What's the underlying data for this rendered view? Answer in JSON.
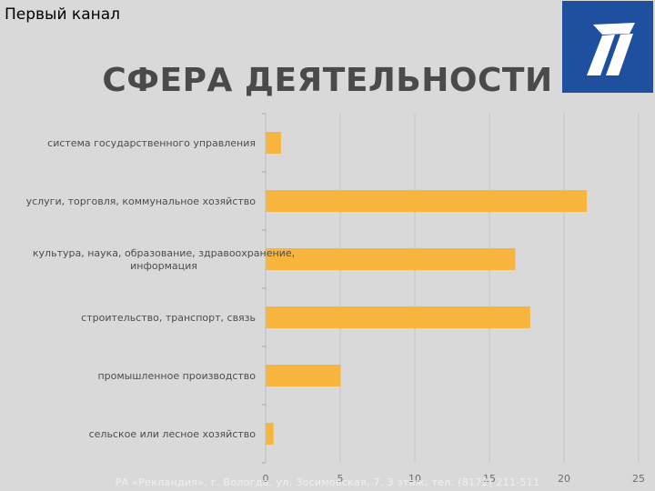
{
  "header": {
    "channel_name": "Первый канал",
    "logo_icon": "channel-one-logo-icon"
  },
  "slide": {
    "title": "СФЕРА ДЕЯТЕЛЬНОСТИ",
    "footer": "РА «Рекландия», г. Вологда, ул. Зосимовская, 7, 3 этаж, тел. (8172) 211-511"
  },
  "colors": {
    "bar": "#f8b53e",
    "logo_bg": "#1f4f9f",
    "background": "#d9d9d9"
  },
  "chart_data": {
    "type": "bar",
    "orientation": "horizontal",
    "categories": [
      [
        "система государственного управления"
      ],
      [
        "услуги, торговля, коммунальное хозяйство"
      ],
      [
        "культура, наука, образование, здравоохранение,",
        "информация"
      ],
      [
        "строительство, транспорт, связь"
      ],
      [
        "промышленное производство"
      ],
      [
        "сельское или лесное хозяйство"
      ]
    ],
    "values": [
      1,
      21.5,
      16.7,
      17.7,
      5,
      0.5
    ],
    "xlim": [
      0,
      25
    ],
    "xticks": [
      "0",
      "5",
      "10",
      "15",
      "20",
      "25"
    ],
    "grid": true
  }
}
